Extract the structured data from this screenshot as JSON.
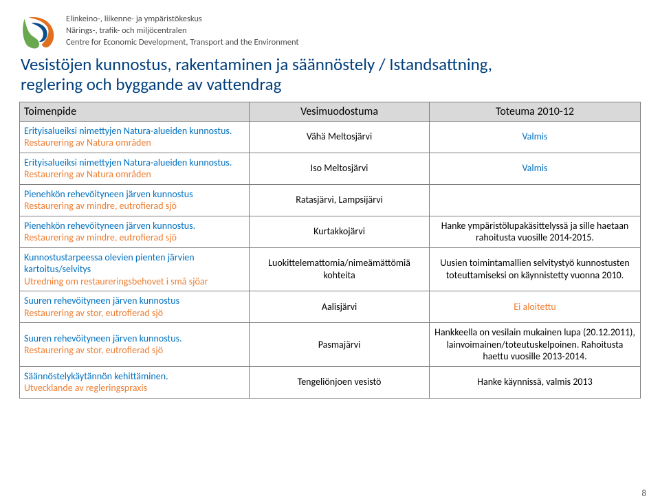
{
  "header": {
    "org_lines": [
      "Elinkeino-, liikenne- ja ympäristökeskus",
      "Närings-, trafik- och miljöcentralen",
      "Centre for Economic Development, Transport and the Environment"
    ]
  },
  "title": {
    "line1": "Vesistöjen kunnostus, rakentaminen ja säännöstely / Istandsattning,",
    "line2": "reglering och byggande av vattendrag"
  },
  "table": {
    "headers": [
      "Toimenpide",
      "Vesimuodostuma",
      "Toteuma 2010-12"
    ],
    "rows": [
      {
        "fi": "Erityisalueiksi nimettyjen Natura-alueiden kunnostus.",
        "sv": "Restaurering av Natura områden",
        "c2": "Vähä Meltosjärvi",
        "c3_fi": "Valmis"
      },
      {
        "fi": "Erityisalueiksi nimettyjen Natura-alueiden kunnostus.",
        "sv": "Restaurering av Natura områden",
        "c2": "Iso Meltosjärvi",
        "c3_fi": "Valmis"
      },
      {
        "fi": "Pienehkön rehevöityneen järven kunnostus",
        "sv": "Restaurering av mindre, eutrofierad sjö",
        "c2": "Ratasjärvi, Lampsijärvi",
        "c3_plain": ""
      },
      {
        "fi": "Pienehkön rehevöityneen järven kunnostus.",
        "sv": "Restaurering av mindre, eutrofierad sjö",
        "c2": "Kurtakkojärvi",
        "c3_plain": "Hanke ympäristölupakäsittelyssä ja sille haetaan rahoitusta vuosille 2014-2015."
      },
      {
        "fi": "Kunnostustarpeessa olevien pienten järvien kartoitus/selvitys",
        "sv": "Utredning om restaureringsbehovet i små sjöar",
        "c2": "Luokittelemattomia/nimeämättömiä kohteita",
        "c3_plain": "Uusien toimintamallien selvitystyö kunnostusten toteuttamiseksi on käynnistetty vuonna 2010."
      },
      {
        "fi": "Suuren rehevöityneen järven kunnostus",
        "sv": "Restaurering av stor, eutrofierad sjö",
        "c2": "Aalisjärvi",
        "c3_sv": "Ei aloitettu"
      },
      {
        "fi": "Suuren rehevöityneen järven kunnostus.",
        "sv": "Restaurering av stor, eutrofierad sjö",
        "c2": "Pasmajärvi",
        "c3_plain": "Hankkeella on vesilain mukainen lupa (20.12.2011), lainvoimainen/toteutuskelpoinen. Rahoitusta haettu vuosille 2013-2014."
      },
      {
        "fi": "Säännöstelykäytännön kehittäminen.",
        "sv": "Utvecklande av regleringspraxis",
        "c2": "Tengeliönjoen vesistö",
        "c3_plain": "Hanke käynnissä, valmis 2013"
      }
    ]
  },
  "page_number": "8",
  "colors": {
    "title": "#003f7d",
    "fi": "#0070c0",
    "sv": "#ed7d31",
    "header_bg": "#d9d9d9",
    "border": "#7f7f7f"
  }
}
